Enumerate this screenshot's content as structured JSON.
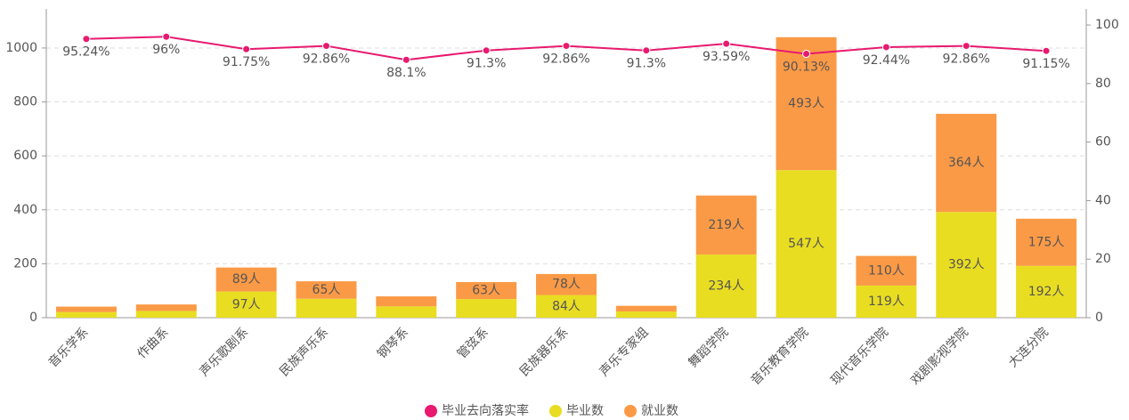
{
  "chart_data": {
    "type": "bar",
    "stacked": true,
    "categories": [
      "音乐学系",
      "作曲系",
      "声乐歌剧系",
      "民族声乐系",
      "钢琴系",
      "管弦系",
      "民族器乐系",
      "声乐专家组",
      "舞蹈学院",
      "音乐教育学院",
      "现代音乐学院",
      "戏剧影视学院",
      "大连分院"
    ],
    "series": [
      {
        "name": "毕业去向落实率",
        "type": "line",
        "axis": "y2",
        "color": "#e8196e",
        "values": [
          95.24,
          96,
          91.75,
          92.86,
          88.1,
          91.3,
          92.86,
          91.3,
          93.59,
          90.13,
          92.44,
          92.86,
          91.15
        ],
        "value_labels": [
          "95.24%",
          "96%",
          "91.75%",
          "92.86%",
          "88.1%",
          "91.3%",
          "92.86%",
          "91.3%",
          "93.59%",
          "90.13%",
          "92.44%",
          "92.86%",
          "91.15%"
        ]
      },
      {
        "name": "毕业数",
        "type": "bar",
        "color": "#e9dd22",
        "values": [
          21,
          25,
          97,
          70,
          42,
          69,
          84,
          23,
          234,
          547,
          119,
          392,
          192
        ],
        "value_labels": [
          null,
          null,
          "97人",
          null,
          null,
          null,
          "84人",
          null,
          "234人",
          "547人",
          "119人",
          "392人",
          "192人"
        ]
      },
      {
        "name": "就业数",
        "type": "bar",
        "color": "#fb9a46",
        "values": [
          20,
          24,
          89,
          65,
          37,
          63,
          78,
          21,
          219,
          493,
          110,
          364,
          175
        ],
        "value_labels": [
          null,
          null,
          "89人",
          "65人",
          null,
          "63人",
          "78人",
          null,
          "219人",
          "493人",
          "110人",
          "364人",
          "175人"
        ]
      }
    ],
    "ylim": [
      0,
      1145
    ],
    "yticks": [
      0,
      200,
      400,
      600,
      800,
      1000
    ],
    "y2lim": [
      0,
      105.5
    ],
    "y2ticks": [
      0,
      20,
      40,
      60,
      80,
      100
    ],
    "grid": true,
    "legend": "bottom"
  }
}
